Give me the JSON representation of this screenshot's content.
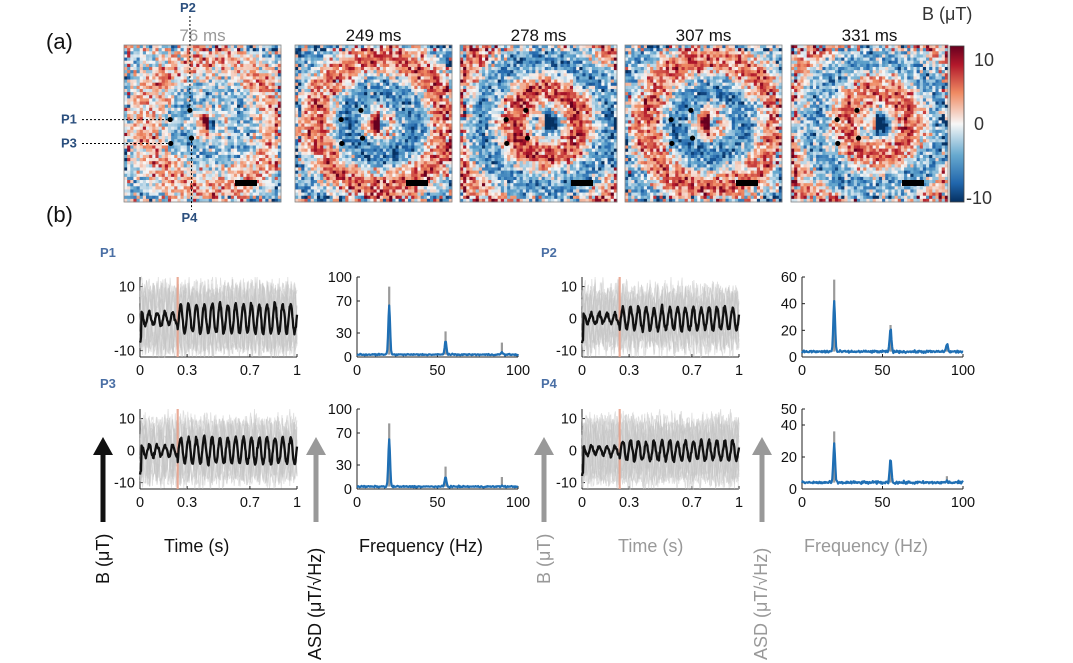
{
  "panel_a_label": "(a)",
  "panel_b_label": "(b)",
  "colors": {
    "blue": "#1f5b9c",
    "navy": "#2b4f7e",
    "gray": "#999999",
    "black": "#111111",
    "fft_blue": "#1f6fb4",
    "event_line": "#e8a28c"
  },
  "chart_data": [
    {
      "id": "field-maps",
      "type": "heatmap",
      "maps": [
        {
          "title": "76 ms",
          "title_color": "#999999",
          "amplitude": 0.55
        },
        {
          "title": "249 ms",
          "title_color": "#111111",
          "amplitude": 1.0
        },
        {
          "title": "278 ms",
          "title_color": "#111111",
          "amplitude": -1.0
        },
        {
          "title": "307 ms",
          "title_color": "#111111",
          "amplitude": 1.0
        },
        {
          "title": "331 ms",
          "title_color": "#111111",
          "amplitude": -0.85
        }
      ],
      "colorbar": {
        "label": "B (μT)",
        "ticks": [
          "10",
          "0",
          "-10"
        ],
        "range": [
          -10,
          10
        ]
      },
      "points": [
        "P1",
        "P2",
        "P3",
        "P4"
      ]
    },
    {
      "id": "p1-time",
      "type": "line",
      "point": "P1",
      "label_color": "#4a6fa5",
      "xlabel": "Time (s)",
      "ylabel": "B (μT)",
      "xlim": [
        0,
        1
      ],
      "ylim": [
        -12,
        13
      ],
      "xticks": [
        "0",
        "0.3",
        "0.7",
        "1"
      ],
      "yticks": [
        "10",
        "0",
        "-10"
      ],
      "event_time": 0.24,
      "oscillation_hz": 20,
      "mean_amplitude": 4.5
    },
    {
      "id": "p1-asd",
      "type": "line",
      "point": "P1",
      "xlabel": "Frequency (Hz)",
      "ylabel": "ASD (μT/√Hz)",
      "xlim": [
        0,
        100
      ],
      "ylim": [
        0,
        100
      ],
      "xticks": [
        "0",
        "50",
        "100"
      ],
      "yticks": [
        "100",
        "70",
        "30",
        "0"
      ],
      "peaks_blue": [
        [
          20,
          65
        ],
        [
          55,
          20
        ],
        [
          90,
          6
        ]
      ],
      "peaks_gray": [
        [
          20,
          88
        ],
        [
          55,
          32
        ],
        [
          90,
          18
        ]
      ],
      "baseline": 3
    },
    {
      "id": "p2-time",
      "type": "line",
      "point": "P2",
      "label_color": "#4a6fa5",
      "xlabel": "Time (s)",
      "ylabel": "B (μT)",
      "xlim": [
        0,
        1
      ],
      "ylim": [
        -12,
        13
      ],
      "xticks": [
        "0",
        "0.3",
        "0.7",
        "1"
      ],
      "yticks": [
        "10",
        "0",
        "-10"
      ],
      "event_time": 0.24,
      "oscillation_hz": 20,
      "mean_amplitude": 3.5
    },
    {
      "id": "p2-asd",
      "type": "line",
      "point": "P2",
      "xlabel": "Frequency (Hz)",
      "ylabel": "ASD (μT/√Hz)",
      "xlim": [
        0,
        100
      ],
      "ylim": [
        0,
        60
      ],
      "xticks": [
        "0",
        "50",
        "100"
      ],
      "yticks": [
        "60",
        "40",
        "20",
        "0"
      ],
      "peaks_blue": [
        [
          20,
          42
        ],
        [
          55,
          21
        ],
        [
          90,
          10
        ]
      ],
      "peaks_gray": [
        [
          20,
          58
        ],
        [
          55,
          24
        ],
        [
          90,
          8
        ]
      ],
      "baseline": 4
    },
    {
      "id": "p3-time",
      "type": "line",
      "point": "P3",
      "label_color": "#4a6fa5",
      "xlabel": "Time (s)",
      "ylabel": "B (μT)",
      "xlim": [
        0,
        1
      ],
      "ylim": [
        -12,
        13
      ],
      "xticks": [
        "0",
        "0.3",
        "0.7",
        "1"
      ],
      "yticks": [
        "10",
        "0",
        "-10"
      ],
      "event_time": 0.24,
      "oscillation_hz": 20,
      "mean_amplitude": 4
    },
    {
      "id": "p3-asd",
      "type": "line",
      "point": "P3",
      "xlabel": "Frequency (Hz)",
      "ylabel": "ASD (μT/√Hz)",
      "xlim": [
        0,
        100
      ],
      "ylim": [
        0,
        100
      ],
      "xticks": [
        "0",
        "50",
        "100"
      ],
      "yticks": [
        "100",
        "70",
        "30",
        "0"
      ],
      "peaks_blue": [
        [
          20,
          62
        ],
        [
          55,
          15
        ],
        [
          90,
          4
        ]
      ],
      "peaks_gray": [
        [
          20,
          82
        ],
        [
          55,
          28
        ],
        [
          90,
          15
        ]
      ],
      "baseline": 3
    },
    {
      "id": "p4-time",
      "type": "line",
      "point": "P4",
      "label_color": "#4a6fa5",
      "xlabel": "Time (s)",
      "ylabel": "B (μT)",
      "xlim": [
        0,
        1
      ],
      "ylim": [
        -12,
        13
      ],
      "xticks": [
        "0",
        "0.3",
        "0.7",
        "1"
      ],
      "yticks": [
        "10",
        "0",
        "-10"
      ],
      "event_time": 0.24,
      "oscillation_hz": 20,
      "mean_amplitude": 3
    },
    {
      "id": "p4-asd",
      "type": "line",
      "point": "P4",
      "xlabel": "Frequency (Hz)",
      "ylabel": "ASD (μT/√Hz)",
      "xlim": [
        0,
        100
      ],
      "ylim": [
        0,
        50
      ],
      "xticks": [
        "0",
        "50",
        "100"
      ],
      "yticks": [
        "50",
        "40",
        "20",
        "0"
      ],
      "peaks_blue": [
        [
          20,
          28
        ],
        [
          55,
          19
        ],
        [
          90,
          5
        ]
      ],
      "peaks_gray": [
        [
          20,
          36
        ],
        [
          55,
          16
        ],
        [
          90,
          8
        ]
      ],
      "baseline": 4
    }
  ],
  "axis_titles": {
    "left_time_x": "Time (s)",
    "left_freq_x": "Frequency (Hz)",
    "right_time_x": "Time (s)",
    "right_freq_x": "Frequency (Hz)",
    "left_b": "B (μT)",
    "left_asd": "ASD (μT/√Hz)",
    "right_b": "B (μT)",
    "right_asd": "ASD (μT/√Hz)"
  }
}
